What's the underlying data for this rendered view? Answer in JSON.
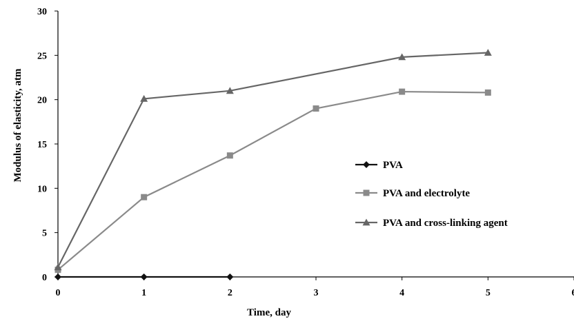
{
  "chart_data": {
    "type": "line",
    "title": "",
    "xlabel": "Time, day",
    "ylabel": "Modulus of elasticity, atm",
    "xlim": [
      0,
      6
    ],
    "ylim": [
      0,
      30
    ],
    "x_ticks": [
      "0",
      "1",
      "2",
      "3",
      "4",
      "5",
      "6"
    ],
    "y_ticks": [
      "0",
      "5",
      "10",
      "15",
      "20",
      "25",
      "30"
    ],
    "grid": false,
    "legend_position": "right",
    "series": [
      {
        "name": "PVA",
        "marker": "diamond",
        "color": "#111111",
        "x": [
          0,
          1,
          2
        ],
        "y": [
          0,
          0,
          0
        ]
      },
      {
        "name": "PVA and electrolyte",
        "marker": "square",
        "color": "#8a8a8a",
        "x": [
          0,
          1,
          2,
          3,
          4,
          5
        ],
        "y": [
          0.8,
          9,
          13.7,
          19,
          20.9,
          20.8
        ]
      },
      {
        "name": "PVA and cross-linking agent",
        "marker": "triangle",
        "color": "#666666",
        "x": [
          0,
          1,
          2,
          4,
          5
        ],
        "y": [
          1.1,
          20.1,
          21,
          24.8,
          25.3
        ]
      }
    ]
  }
}
